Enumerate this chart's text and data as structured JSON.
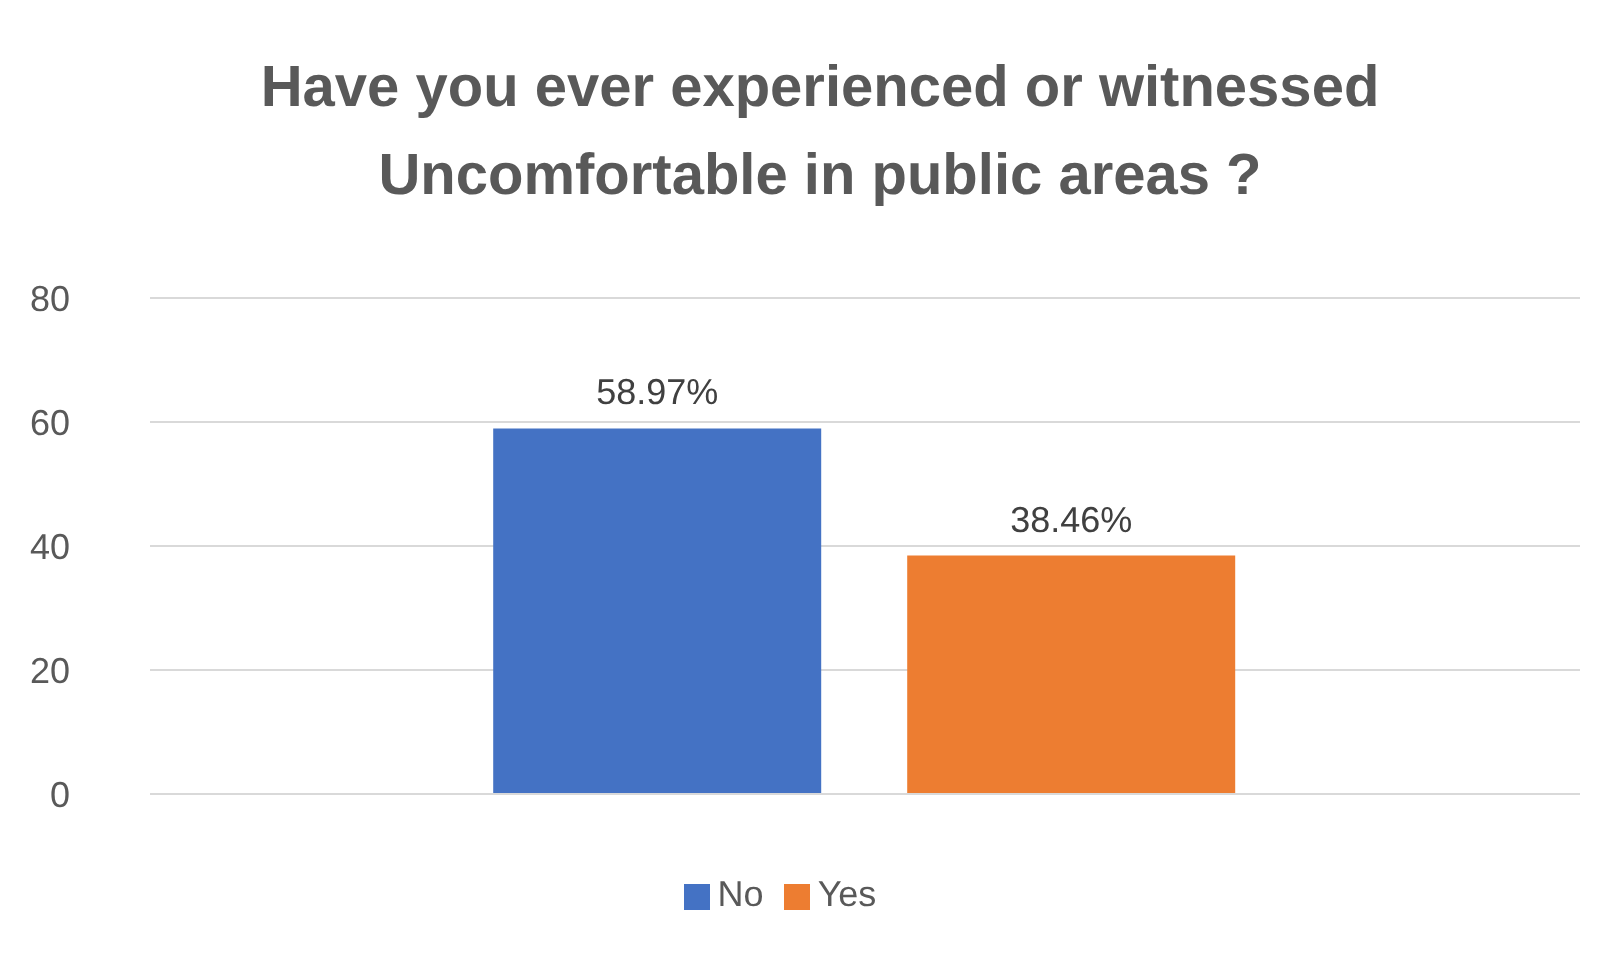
{
  "chart_data": {
    "type": "bar",
    "title": "Have you ever experienced or witnessed Uncomfortable in public areas ?",
    "categories": [
      null
    ],
    "series": [
      {
        "name": "No",
        "color": "#4472c4",
        "values": [
          58.97
        ],
        "value_labels": [
          "58.97%"
        ]
      },
      {
        "name": "Yes",
        "color": "#ed7d31",
        "values": [
          38.46
        ],
        "value_labels": [
          "38.46%"
        ]
      }
    ],
    "ylim": [
      0,
      80
    ],
    "yticks": [
      0,
      20,
      40,
      60,
      80
    ],
    "grid": "y",
    "legend": "bottom"
  }
}
